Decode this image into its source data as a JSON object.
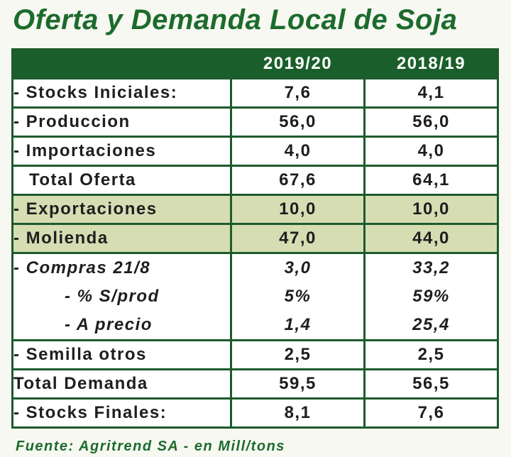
{
  "title": "Oferta y Demanda Local de Soja",
  "columns": [
    "2019/20",
    "2018/19"
  ],
  "rows": [
    {
      "label": "- Stocks Iniciales:",
      "v1": "7,6",
      "v2": "4,1"
    },
    {
      "label": "- Produccion",
      "v1": "56,0",
      "v2": "56,0"
    },
    {
      "label": "- Importaciones",
      "v1": "4,0",
      "v2": "4,0"
    },
    {
      "label": "Total Oferta",
      "v1": "67,6",
      "v2": "64,1"
    },
    {
      "label": "- Exportaciones",
      "v1": "10,0",
      "v2": "10,0"
    },
    {
      "label": "- Molienda",
      "v1": "47,0",
      "v2": "44,0"
    },
    {
      "label": "- Compras 21/8",
      "v1": "3,0",
      "v2": "33,2"
    },
    {
      "label": "- % S/prod",
      "v1": "5%",
      "v2": "59%"
    },
    {
      "label": "- A precio",
      "v1": "1,4",
      "v2": "25,4"
    },
    {
      "label": "- Semilla otros",
      "v1": "2,5",
      "v2": "2,5"
    },
    {
      "label": "Total Demanda",
      "v1": "59,5",
      "v2": "56,5"
    },
    {
      "label": "- Stocks Finales:",
      "v1": "8,1",
      "v2": "7,6"
    }
  ],
  "source": "Fuente: Agritrend SA - en Mill/tons",
  "colors": {
    "header_bg": "#1a5f2b",
    "highlight_bg": "#d6ddb3",
    "title": "#1c6b2c"
  }
}
